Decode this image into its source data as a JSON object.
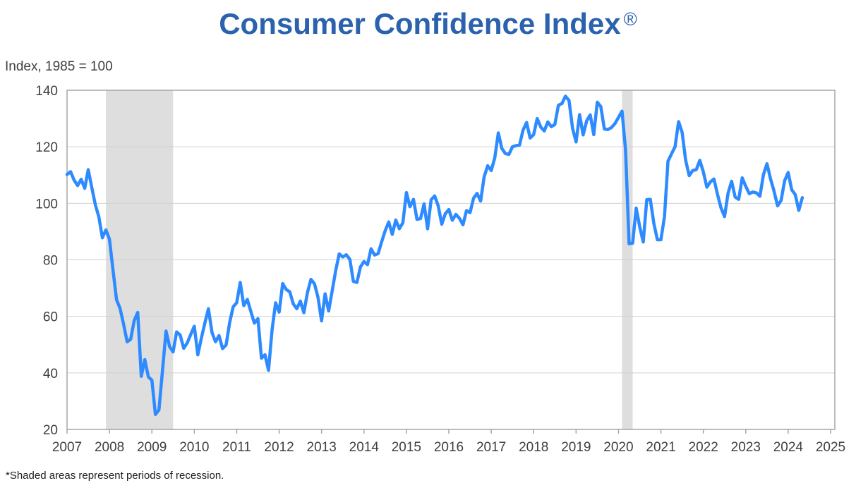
{
  "chart_data": {
    "type": "line",
    "title": "Consumer Confidence Index",
    "title_mark": "®",
    "ylabel": "Index, 1985 = 100",
    "xlabel": "",
    "ylim": [
      20,
      140
    ],
    "xlim": [
      2007,
      2025
    ],
    "yticks": [
      "20",
      "40",
      "60",
      "80",
      "100",
      "120",
      "140"
    ],
    "xticks": [
      "2007",
      "2008",
      "2009",
      "2010",
      "2011",
      "2012",
      "2013",
      "2014",
      "2015",
      "2016",
      "2017",
      "2018",
      "2019",
      "2020",
      "2021",
      "2022",
      "2023",
      "2024",
      "2025"
    ],
    "grid": "horizontal",
    "line_color": "#2e8bff",
    "recession_color": "#dedede",
    "recessions": [
      [
        "2007-12",
        "2009-06"
      ],
      [
        "2020-02",
        "2020-04"
      ]
    ],
    "start": "2007-01",
    "frequency": "monthly",
    "values": [
      110.2,
      111.2,
      108.2,
      106.3,
      108.5,
      105.3,
      111.9,
      105.6,
      99.5,
      95.2,
      87.8,
      90.6,
      87.3,
      76.4,
      65.9,
      62.8,
      57.2,
      51.0,
      51.9,
      58.5,
      61.4,
      38.8,
      44.7,
      38.6,
      37.4,
      25.3,
      26.9,
      40.8,
      54.8,
      49.3,
      47.4,
      54.5,
      53.4,
      48.7,
      50.6,
      53.6,
      56.5,
      46.4,
      52.3,
      57.7,
      62.7,
      54.3,
      51.0,
      53.2,
      48.6,
      49.9,
      57.8,
      63.4,
      64.8,
      72.0,
      63.8,
      66.0,
      61.7,
      57.6,
      59.2,
      45.2,
      46.4,
      40.9,
      55.2,
      64.8,
      61.5,
      71.6,
      69.5,
      68.7,
      64.4,
      62.7,
      65.4,
      61.3,
      68.4,
      73.1,
      71.5,
      66.7,
      58.4,
      68.0,
      61.9,
      69.0,
      76.2,
      82.1,
      81.0,
      81.8,
      80.2,
      72.4,
      72.0,
      77.5,
      79.4,
      78.3,
      83.9,
      81.7,
      82.2,
      86.4,
      90.3,
      93.4,
      89.0,
      94.1,
      91.0,
      93.1,
      103.8,
      98.8,
      101.4,
      94.3,
      94.6,
      99.8,
      91.0,
      101.3,
      102.6,
      99.1,
      92.6,
      96.3,
      97.8,
      94.0,
      96.1,
      94.7,
      92.4,
      97.4,
      96.7,
      101.8,
      103.5,
      100.8,
      109.4,
      113.3,
      111.6,
      116.1,
      124.9,
      119.4,
      117.6,
      117.3,
      120.0,
      120.4,
      120.6,
      125.9,
      128.6,
      123.1,
      124.3,
      130.0,
      127.0,
      125.6,
      128.8,
      127.1,
      127.9,
      134.7,
      135.3,
      137.9,
      136.4,
      126.6,
      121.7,
      131.4,
      124.2,
      129.2,
      131.3,
      124.3,
      135.8,
      134.2,
      126.3,
      126.1,
      126.8,
      128.2,
      130.4,
      132.6,
      118.8,
      85.7,
      85.9,
      98.3,
      91.7,
      86.3,
      101.3,
      101.4,
      92.9,
      87.1,
      87.1,
      95.2,
      114.9,
      117.5,
      120.0,
      128.9,
      125.1,
      115.2,
      109.8,
      111.6,
      111.9,
      115.2,
      111.1,
      105.7,
      107.6,
      108.6,
      103.2,
      98.4,
      95.3,
      103.6,
      107.8,
      102.2,
      101.4,
      109.0,
      106.0,
      103.4,
      104.0,
      103.7,
      102.5,
      110.1,
      114.0,
      108.7,
      104.3,
      99.1,
      101.0,
      108.0,
      110.9,
      104.8,
      103.1,
      97.5,
      102.0
    ]
  },
  "footnote": "*Shaded areas represent periods of recession."
}
